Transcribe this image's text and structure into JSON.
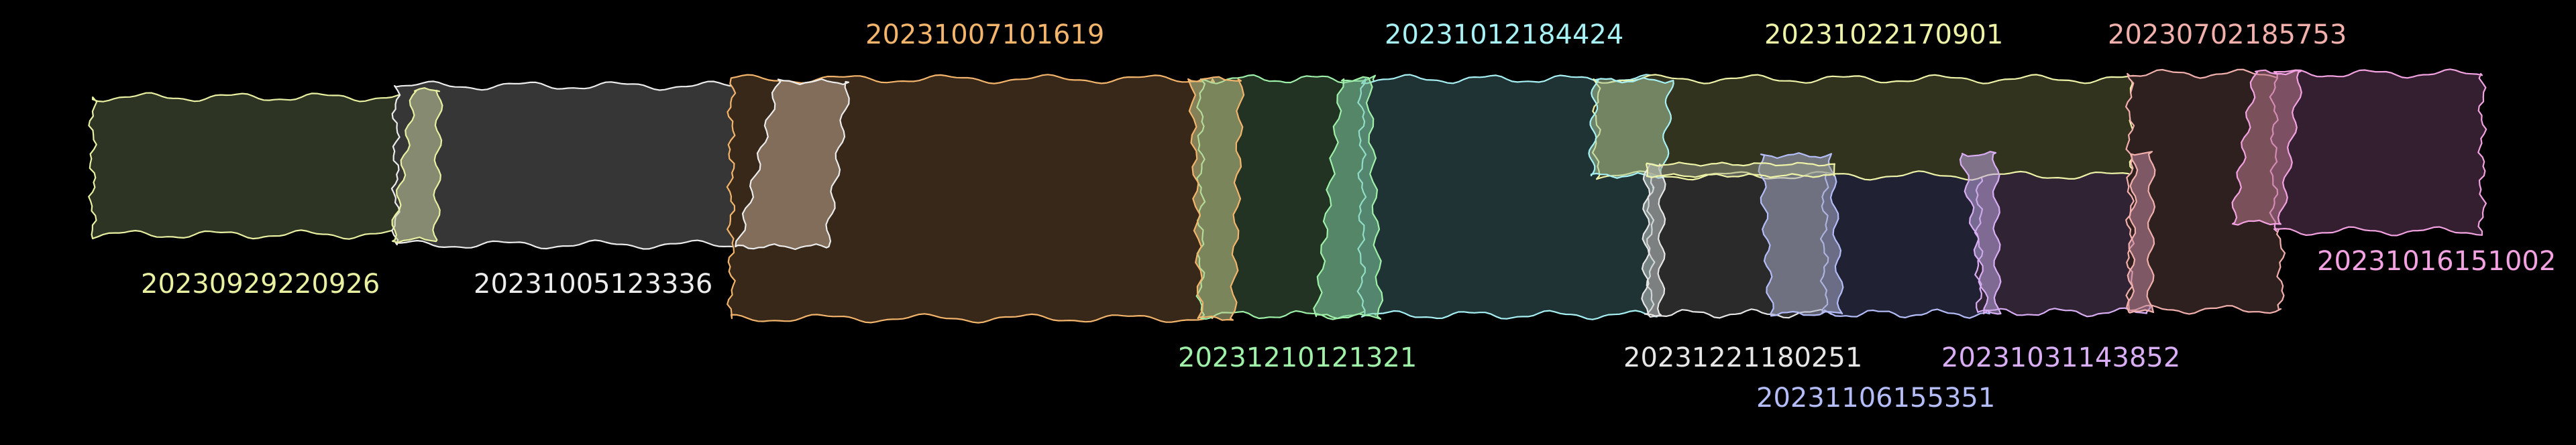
{
  "background": "#000000",
  "patches": [
    {
      "id": "20230929220926",
      "fill": "#2e3423",
      "stroke": "#e9f0a2"
    },
    {
      "id": "20231005123336",
      "fill": "#363636",
      "stroke": "#ececec"
    },
    {
      "id": "20231007101619",
      "fill": "#382819",
      "stroke": "#f3b46b"
    },
    {
      "id": "20231210121321",
      "fill": "#223324",
      "stroke": "#9ff0a8"
    },
    {
      "id": "20231012184424",
      "fill": "#203334",
      "stroke": "#a7f1f4"
    },
    {
      "id": "20231022170901",
      "fill": "#31331f",
      "stroke": "#eef3a8"
    },
    {
      "id": "20231221180251",
      "fill": "#2a2a2a",
      "stroke": "#e6e6e6"
    },
    {
      "id": "20231106155351",
      "fill": "#202234",
      "stroke": "#b4bdf7"
    },
    {
      "id": "20231031143852",
      "fill": "#2f2334",
      "stroke": "#d9aef4"
    },
    {
      "id": "20230702185753",
      "fill": "#2f2020",
      "stroke": "#f2b0ac"
    },
    {
      "id": "20231016151002",
      "fill": "#331f30",
      "stroke": "#f3a2e1"
    }
  ]
}
